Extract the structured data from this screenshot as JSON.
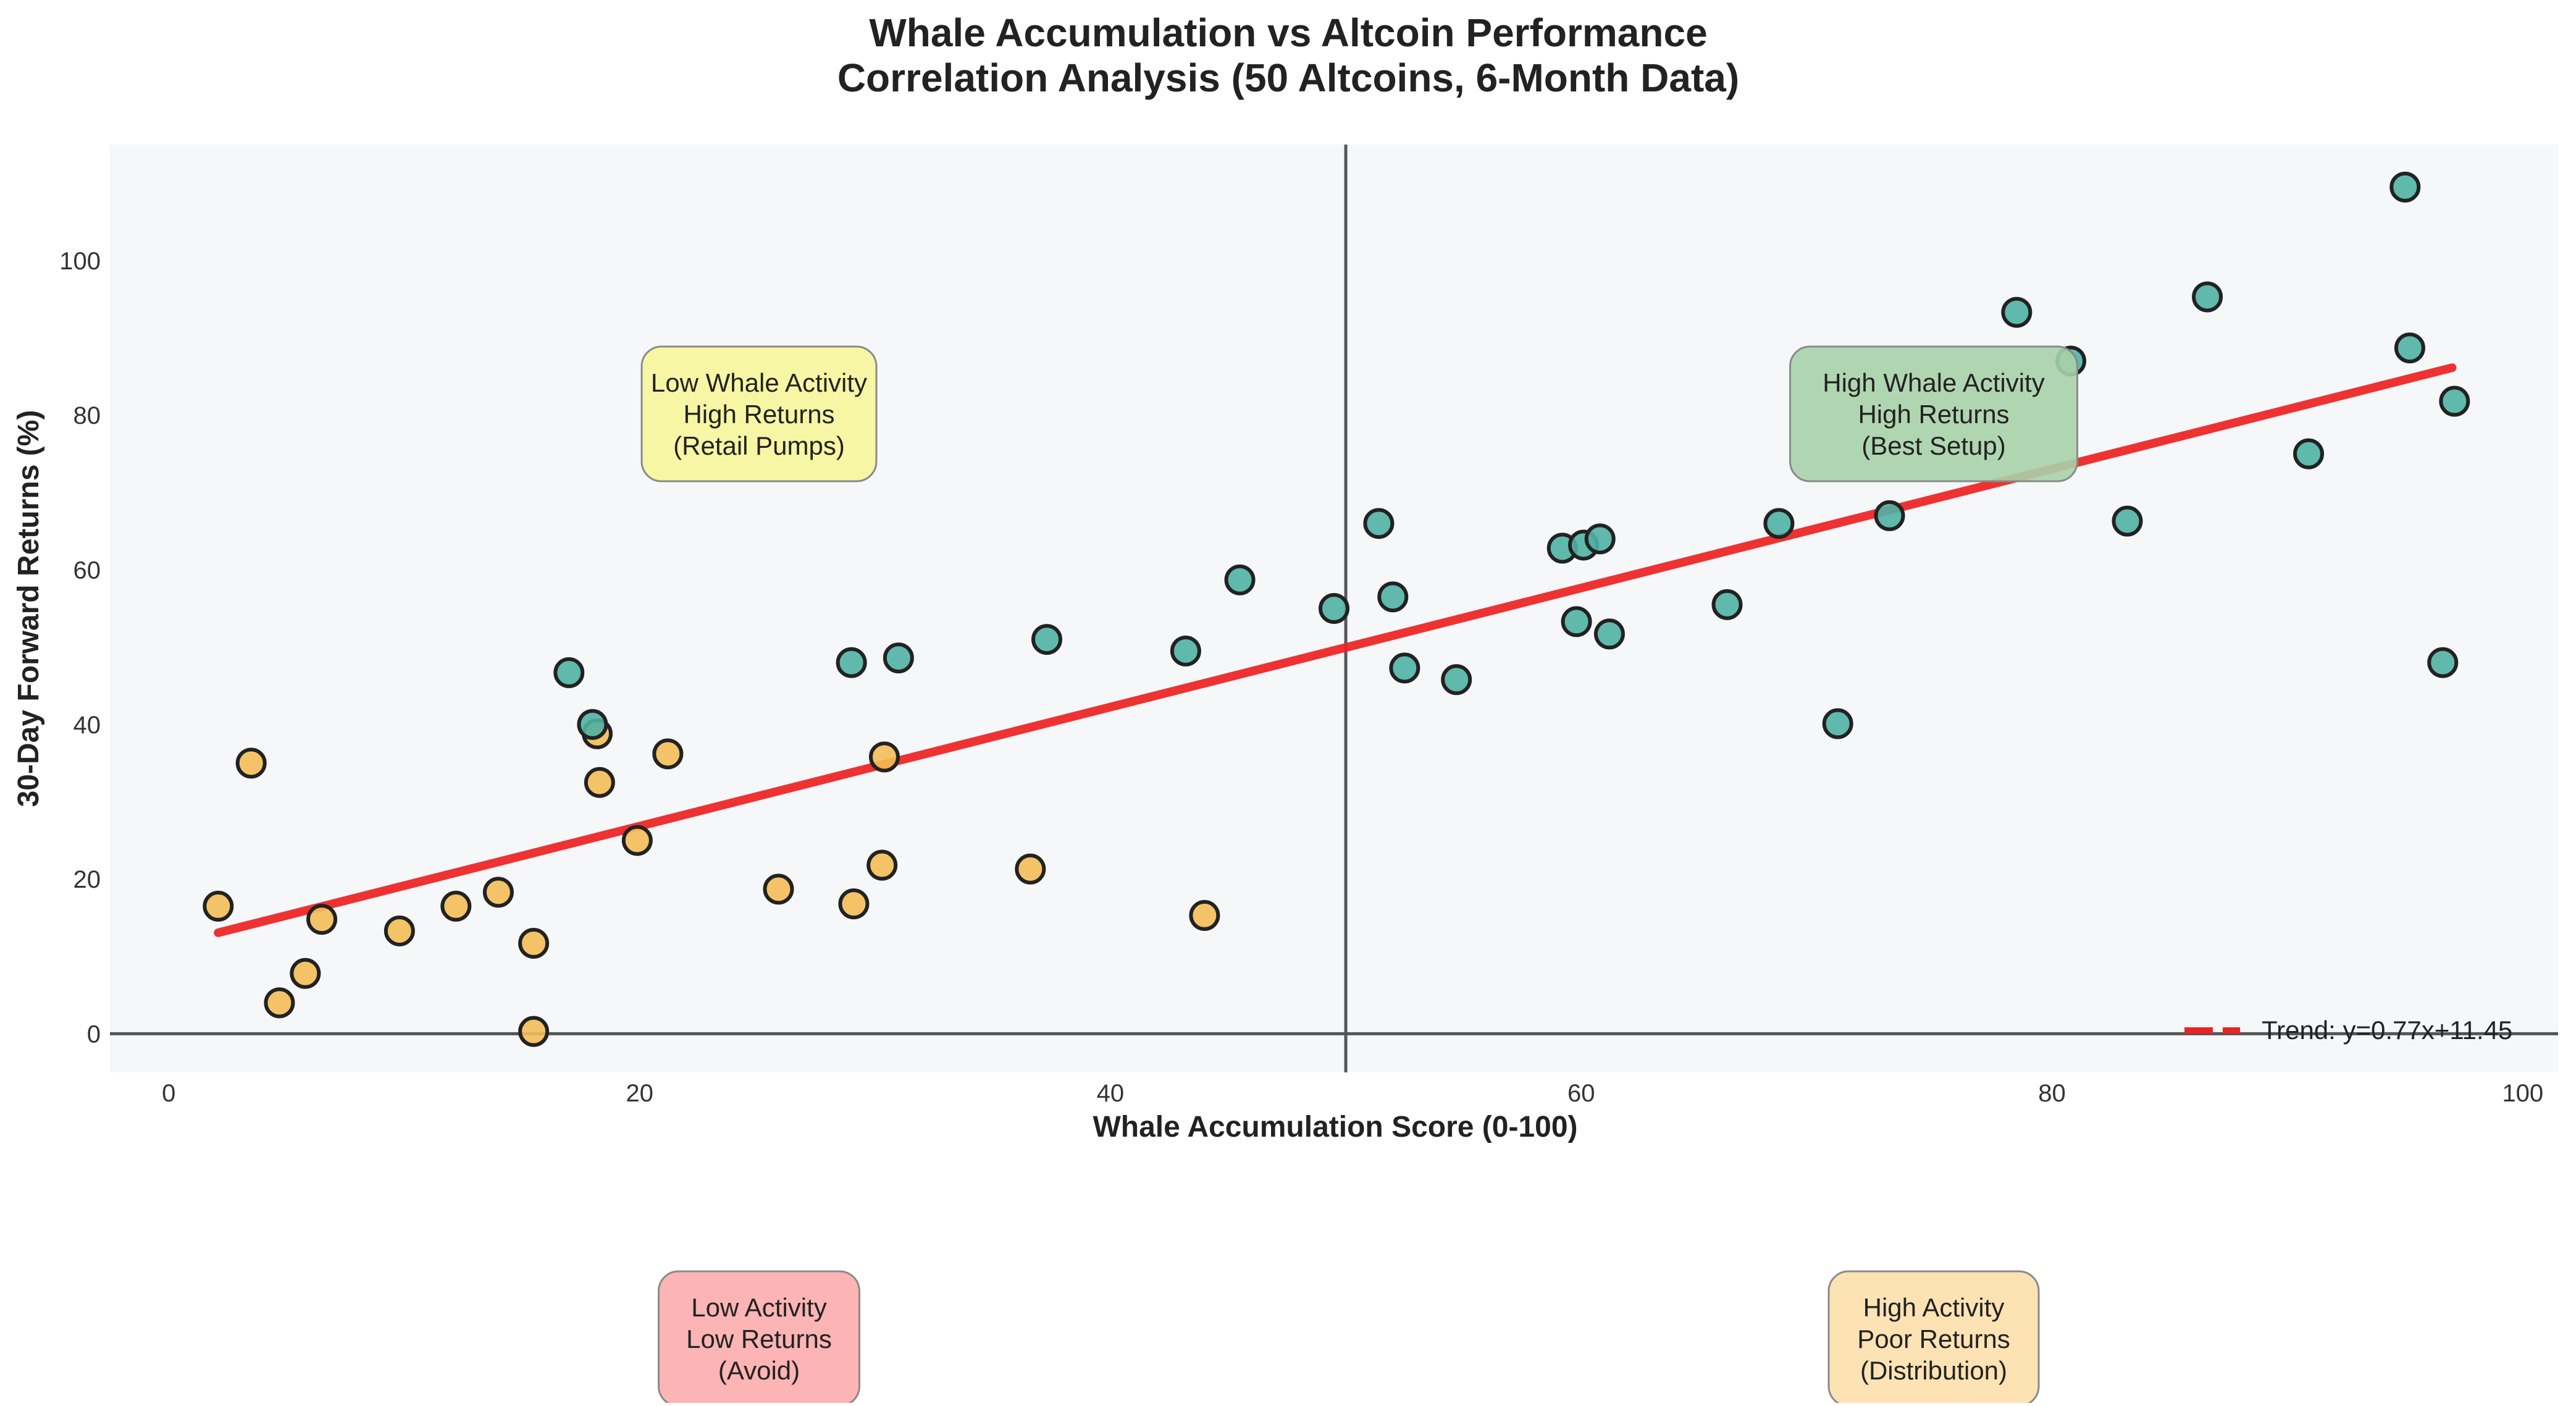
{
  "chart_data": {
    "type": "scatter",
    "title": "Whale Accumulation vs Altcoin Performance",
    "subtitle": "Correlation Analysis (50 Altcoins, 6-Month Data)",
    "xlabel": "Whale Accumulation Score (0-100)",
    "ylabel": "30-Day Forward Returns (%)",
    "xlim": [
      -2.5,
      101.5
    ],
    "ylim": [
      -5,
      115
    ],
    "xticks": [
      0,
      20,
      40,
      60,
      80,
      100
    ],
    "yticks": [
      0,
      20,
      40,
      60,
      80,
      100
    ],
    "xtick_labels": [
      "0",
      "20",
      "40",
      "60",
      "80",
      "100"
    ],
    "ytick_labels": [
      "0",
      "20",
      "40",
      "60",
      "80",
      "100"
    ],
    "grid": false,
    "reference_lines": {
      "vertical_x": 50,
      "horizontal_y": 0
    },
    "colors": {
      "background_plot": "#f6f7f9",
      "low_whale_points": "#f4bd57",
      "high_whale_points": "#4fb1a3",
      "point_edge": "#222222",
      "trend": "#ee2222",
      "reference_line": "#555555",
      "title": "#222222"
    },
    "trend": {
      "slope": 0.77,
      "intercept": 11.45,
      "x_range": [
        2.1,
        97
      ],
      "legend_label": "Trend: y=0.77x+11.45",
      "legend_placement": "bottom-right"
    },
    "series": [
      {
        "group": "low",
        "color": "#f4bd57",
        "points": [
          [
            2.1,
            16.5
          ],
          [
            3.5,
            35
          ],
          [
            4.7,
            4
          ],
          [
            5.8,
            7.8
          ],
          [
            6.5,
            14.8
          ],
          [
            9.8,
            13.3
          ],
          [
            12.2,
            16.5
          ],
          [
            14,
            18.3
          ],
          [
            15.5,
            11.7
          ],
          [
            15.5,
            0.3
          ],
          [
            18.2,
            38.8
          ],
          [
            18.3,
            32.5
          ],
          [
            19.9,
            25
          ],
          [
            21.2,
            36.2
          ],
          [
            25.9,
            18.7
          ],
          [
            29.1,
            16.8
          ],
          [
            30.3,
            21.8
          ],
          [
            30.4,
            35.8
          ],
          [
            36.6,
            21.3
          ],
          [
            44,
            15.3
          ]
        ]
      },
      {
        "group": "high",
        "color": "#4fb1a3",
        "points": [
          [
            17,
            46.7
          ],
          [
            18,
            40
          ],
          [
            29,
            48
          ],
          [
            31,
            48.6
          ],
          [
            37.3,
            51
          ],
          [
            43.2,
            49.5
          ],
          [
            45.5,
            58.7
          ],
          [
            49.5,
            55
          ],
          [
            51.4,
            66
          ],
          [
            52,
            56.5
          ],
          [
            52.5,
            47.3
          ],
          [
            54.7,
            45.8
          ],
          [
            59.2,
            62.8
          ],
          [
            59.8,
            53.3
          ],
          [
            60.1,
            63.2
          ],
          [
            60.8,
            64
          ],
          [
            61.2,
            51.7
          ],
          [
            66.2,
            55.5
          ],
          [
            68.4,
            66
          ],
          [
            70.9,
            40.1
          ],
          [
            73.1,
            67
          ],
          [
            78.5,
            93.3
          ],
          [
            80.8,
            87
          ],
          [
            83.2,
            66.3
          ],
          [
            86.6,
            95.3
          ],
          [
            90.9,
            75
          ],
          [
            95,
            109.5
          ],
          [
            95.2,
            88.7
          ],
          [
            96.6,
            48
          ],
          [
            97.1,
            81.8
          ]
        ]
      }
    ],
    "annotations": [
      {
        "id": "low-high",
        "lines": [
          "Low Whale Activity",
          "High Returns",
          "(Retail Pumps)"
        ],
        "color": "#f6f59a"
      },
      {
        "id": "high-high",
        "lines": [
          "High Whale Activity",
          "High Returns",
          "(Best Setup)"
        ],
        "color": "#a9d2a9"
      },
      {
        "id": "low-low",
        "lines": [
          "Low Activity",
          "Low Returns",
          "(Avoid)"
        ],
        "color": "#fcacac"
      },
      {
        "id": "high-low",
        "lines": [
          "High Activity",
          "Poor Returns",
          "(Distribution)"
        ],
        "color": "#fde0ab"
      }
    ]
  }
}
